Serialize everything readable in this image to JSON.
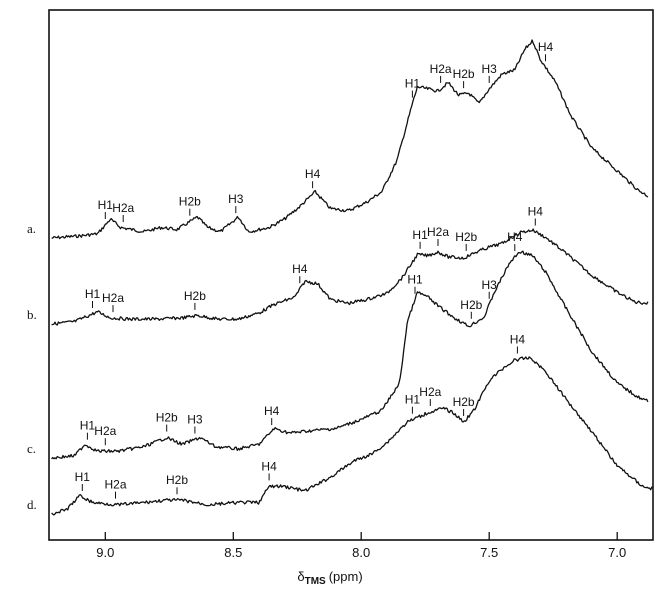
{
  "chart_data": {
    "type": "line",
    "title": "",
    "xlabel_symbol": "δ",
    "xlabel_subscript": "TMS",
    "xlabel_unit": "(ppm)",
    "ylabel": "",
    "xlim": [
      9.22,
      6.86
    ],
    "x_reversed": true,
    "x_ticks": [
      {
        "value": 9.0,
        "label": "9.0"
      },
      {
        "value": 8.5,
        "label": "8.5"
      },
      {
        "value": 8.0,
        "label": "8.0"
      },
      {
        "value": 7.5,
        "label": "7.5"
      },
      {
        "value": 7.0,
        "label": "7.0"
      }
    ],
    "grid": false,
    "legend": "none",
    "series": [
      {
        "name": "a.",
        "points": [
          [
            9.21,
            0.0
          ],
          [
            9.1,
            0.01
          ],
          [
            9.03,
            0.02
          ],
          [
            8.98,
            0.09
          ],
          [
            8.94,
            0.05
          ],
          [
            8.85,
            0.03
          ],
          [
            8.78,
            0.05
          ],
          [
            8.72,
            0.04
          ],
          [
            8.64,
            0.1
          ],
          [
            8.6,
            0.05
          ],
          [
            8.55,
            0.03
          ],
          [
            8.48,
            0.1
          ],
          [
            8.44,
            0.03
          ],
          [
            8.36,
            0.05
          ],
          [
            8.3,
            0.09
          ],
          [
            8.24,
            0.15
          ],
          [
            8.18,
            0.22
          ],
          [
            8.12,
            0.14
          ],
          [
            8.05,
            0.13
          ],
          [
            7.98,
            0.17
          ],
          [
            7.92,
            0.22
          ],
          [
            7.86,
            0.37
          ],
          [
            7.8,
            0.64
          ],
          [
            7.78,
            0.72
          ],
          [
            7.74,
            0.71
          ],
          [
            7.7,
            0.7
          ],
          [
            7.66,
            0.74
          ],
          [
            7.62,
            0.68
          ],
          [
            7.58,
            0.69
          ],
          [
            7.54,
            0.64
          ],
          [
            7.5,
            0.71
          ],
          [
            7.45,
            0.78
          ],
          [
            7.4,
            0.8
          ],
          [
            7.36,
            0.9
          ],
          [
            7.33,
            0.94
          ],
          [
            7.3,
            0.85
          ],
          [
            7.24,
            0.74
          ],
          [
            7.18,
            0.58
          ],
          [
            7.1,
            0.43
          ],
          [
            7.0,
            0.32
          ],
          [
            6.92,
            0.23
          ],
          [
            6.88,
            0.2
          ]
        ]
      },
      {
        "name": "b.",
        "points": [
          [
            9.21,
            0.0
          ],
          [
            9.12,
            0.02
          ],
          [
            9.03,
            0.1
          ],
          [
            8.98,
            0.05
          ],
          [
            8.9,
            0.04
          ],
          [
            8.8,
            0.04
          ],
          [
            8.7,
            0.05
          ],
          [
            8.64,
            0.07
          ],
          [
            8.56,
            0.04
          ],
          [
            8.48,
            0.04
          ],
          [
            8.4,
            0.09
          ],
          [
            8.34,
            0.16
          ],
          [
            8.26,
            0.22
          ],
          [
            8.22,
            0.35
          ],
          [
            8.17,
            0.33
          ],
          [
            8.12,
            0.2
          ],
          [
            8.05,
            0.17
          ],
          [
            7.98,
            0.2
          ],
          [
            7.9,
            0.25
          ],
          [
            7.84,
            0.38
          ],
          [
            7.78,
            0.57
          ],
          [
            7.74,
            0.56
          ],
          [
            7.7,
            0.59
          ],
          [
            7.66,
            0.55
          ],
          [
            7.6,
            0.54
          ],
          [
            7.55,
            0.59
          ],
          [
            7.5,
            0.63
          ],
          [
            7.45,
            0.66
          ],
          [
            7.38,
            0.75
          ],
          [
            7.33,
            0.77
          ],
          [
            7.28,
            0.71
          ],
          [
            7.2,
            0.58
          ],
          [
            7.1,
            0.4
          ],
          [
            7.0,
            0.26
          ],
          [
            6.93,
            0.18
          ],
          [
            6.88,
            0.17
          ]
        ]
      },
      {
        "name": "c.",
        "points": [
          [
            9.21,
            0.0
          ],
          [
            9.12,
            0.01
          ],
          [
            9.08,
            0.06
          ],
          [
            9.03,
            0.03
          ],
          [
            8.95,
            0.03
          ],
          [
            8.85,
            0.05
          ],
          [
            8.76,
            0.09
          ],
          [
            8.7,
            0.06
          ],
          [
            8.63,
            0.09
          ],
          [
            8.57,
            0.05
          ],
          [
            8.48,
            0.04
          ],
          [
            8.4,
            0.06
          ],
          [
            8.34,
            0.13
          ],
          [
            8.28,
            0.11
          ],
          [
            8.2,
            0.12
          ],
          [
            8.1,
            0.13
          ],
          [
            8.0,
            0.17
          ],
          [
            7.92,
            0.21
          ],
          [
            7.85,
            0.33
          ],
          [
            7.82,
            0.6
          ],
          [
            7.78,
            0.73
          ],
          [
            7.74,
            0.71
          ],
          [
            7.7,
            0.67
          ],
          [
            7.64,
            0.62
          ],
          [
            7.58,
            0.58
          ],
          [
            7.52,
            0.62
          ],
          [
            7.48,
            0.73
          ],
          [
            7.42,
            0.86
          ],
          [
            7.38,
            0.91
          ],
          [
            7.33,
            0.89
          ],
          [
            7.28,
            0.82
          ],
          [
            7.2,
            0.66
          ],
          [
            7.1,
            0.47
          ],
          [
            7.0,
            0.33
          ],
          [
            6.92,
            0.27
          ],
          [
            6.88,
            0.25
          ]
        ]
      },
      {
        "name": "d.",
        "points": [
          [
            9.21,
            0.0
          ],
          [
            9.15,
            0.02
          ],
          [
            9.1,
            0.08
          ],
          [
            9.05,
            0.05
          ],
          [
            8.95,
            0.04
          ],
          [
            8.85,
            0.05
          ],
          [
            8.76,
            0.06
          ],
          [
            8.7,
            0.06
          ],
          [
            8.6,
            0.04
          ],
          [
            8.48,
            0.05
          ],
          [
            8.4,
            0.05
          ],
          [
            8.36,
            0.12
          ],
          [
            8.3,
            0.12
          ],
          [
            8.22,
            0.1
          ],
          [
            8.12,
            0.16
          ],
          [
            8.03,
            0.23
          ],
          [
            7.96,
            0.26
          ],
          [
            7.9,
            0.31
          ],
          [
            7.82,
            0.4
          ],
          [
            7.74,
            0.44
          ],
          [
            7.68,
            0.46
          ],
          [
            7.64,
            0.44
          ],
          [
            7.6,
            0.4
          ],
          [
            7.56,
            0.45
          ],
          [
            7.5,
            0.58
          ],
          [
            7.45,
            0.63
          ],
          [
            7.4,
            0.67
          ],
          [
            7.34,
            0.68
          ],
          [
            7.28,
            0.62
          ],
          [
            7.2,
            0.5
          ],
          [
            7.1,
            0.36
          ],
          [
            7.0,
            0.21
          ],
          [
            6.9,
            0.12
          ],
          [
            6.86,
            0.11
          ]
        ]
      }
    ],
    "annotations": [
      {
        "series": "a.",
        "text": "H1",
        "x": 9.0
      },
      {
        "series": "a.",
        "text": "H2a",
        "x": 8.93
      },
      {
        "series": "a.",
        "text": "H2b",
        "x": 8.67
      },
      {
        "series": "a.",
        "text": "H3",
        "x": 8.49
      },
      {
        "series": "a.",
        "text": "H4",
        "x": 8.19
      },
      {
        "series": "a.",
        "text": "H1",
        "x": 7.8
      },
      {
        "series": "a.",
        "text": "H2a",
        "x": 7.69
      },
      {
        "series": "a.",
        "text": "H2b",
        "x": 7.6
      },
      {
        "series": "a.",
        "text": "H3",
        "x": 7.5
      },
      {
        "series": "a.",
        "text": "H4",
        "x": 7.28
      },
      {
        "series": "b.",
        "text": "H1",
        "x": 9.05
      },
      {
        "series": "b.",
        "text": "H2a",
        "x": 8.97
      },
      {
        "series": "b.",
        "text": "H2b",
        "x": 8.65
      },
      {
        "series": "b.",
        "text": "H4",
        "x": 8.24
      },
      {
        "series": "b.",
        "text": "H1",
        "x": 7.77
      },
      {
        "series": "b.",
        "text": "H2a",
        "x": 7.7
      },
      {
        "series": "b.",
        "text": "H2b",
        "x": 7.59
      },
      {
        "series": "b.",
        "text": "H4",
        "x": 7.32
      },
      {
        "series": "c.",
        "text": "H1",
        "x": 9.07
      },
      {
        "series": "c.",
        "text": "H2a",
        "x": 9.0
      },
      {
        "series": "c.",
        "text": "H2b",
        "x": 8.76
      },
      {
        "series": "c.",
        "text": "H3",
        "x": 8.65
      },
      {
        "series": "c.",
        "text": "H4",
        "x": 8.35
      },
      {
        "series": "c.",
        "text": "H1",
        "x": 7.79
      },
      {
        "series": "c.",
        "text": "H2b",
        "x": 7.57
      },
      {
        "series": "c.",
        "text": "H3",
        "x": 7.5
      },
      {
        "series": "c.",
        "text": "H4",
        "x": 7.4
      },
      {
        "series": "d.",
        "text": "H1",
        "x": 9.09
      },
      {
        "series": "d.",
        "text": "H2a",
        "x": 8.96
      },
      {
        "series": "d.",
        "text": "H2b",
        "x": 8.72
      },
      {
        "series": "d.",
        "text": "H4",
        "x": 8.36
      },
      {
        "series": "d.",
        "text": "H1",
        "x": 7.8
      },
      {
        "series": "d.",
        "text": "H2a",
        "x": 7.73
      },
      {
        "series": "d.",
        "text": "H2b",
        "x": 7.6
      },
      {
        "series": "d.",
        "text": "H4",
        "x": 7.39
      }
    ]
  }
}
